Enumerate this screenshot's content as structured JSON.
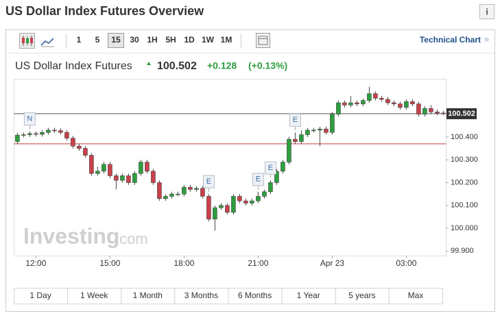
{
  "header": {
    "title": "US Dollar Index Futures Overview"
  },
  "toolbar": {
    "intervals": [
      "1",
      "5",
      "15",
      "30",
      "1H",
      "5H",
      "1D",
      "1W",
      "1M"
    ],
    "selected": "15",
    "link": "Technical Chart"
  },
  "quote": {
    "name": "US Dollar Index Futures",
    "price": "100.502",
    "change": "+0.128",
    "change_percent": "(+0.13%)"
  },
  "watermark": {
    "brand": "Investing",
    "suffix": ".com"
  },
  "chart_data": {
    "type": "candlestick",
    "x": [
      11.25,
      11.5,
      11.75,
      12,
      12.25,
      12.5,
      12.75,
      13,
      13.25,
      13.5,
      13.75,
      14,
      14.25,
      14.5,
      14.75,
      15,
      15.25,
      15.5,
      15.75,
      16,
      16.25,
      16.5,
      16.75,
      17,
      17.25,
      17.5,
      17.75,
      18,
      18.25,
      18.5,
      18.75,
      19,
      19.25,
      19.5,
      19.75,
      20,
      20.25,
      20.5,
      20.75,
      21,
      21.25,
      21.5,
      21.75,
      22,
      22.25,
      22.5,
      22.75,
      23,
      23.25,
      23.5,
      23.75,
      24,
      24.25,
      24.5,
      24.75,
      25,
      25.25,
      25.5,
      25.75,
      26,
      26.25,
      26.5,
      26.75,
      27,
      27.25,
      27.5,
      27.75,
      28,
      28.25,
      28.5
    ],
    "open": [
      100.38,
      100.408,
      100.41,
      100.415,
      100.412,
      100.42,
      100.43,
      100.428,
      100.42,
      100.395,
      100.36,
      100.35,
      100.32,
      100.24,
      100.25,
      100.28,
      100.23,
      100.21,
      100.23,
      100.2,
      100.24,
      100.29,
      100.25,
      100.2,
      100.13,
      100.14,
      100.15,
      100.15,
      100.18,
      100.17,
      100.175,
      100.14,
      100.04,
      100.09,
      100.1,
      100.07,
      100.14,
      100.12,
      100.11,
      100.12,
      100.14,
      100.16,
      100.2,
      100.25,
      100.29,
      100.39,
      100.38,
      100.41,
      100.43,
      100.43,
      100.435,
      100.42,
      100.5,
      100.55,
      100.54,
      100.55,
      100.545,
      100.56,
      100.59,
      100.57,
      100.565,
      100.55,
      100.545,
      100.53,
      100.555,
      100.545,
      100.5,
      100.525,
      100.51,
      100.505
    ],
    "high": [
      100.418,
      100.42,
      100.425,
      100.425,
      100.43,
      100.44,
      100.44,
      100.438,
      100.43,
      100.405,
      100.37,
      100.36,
      100.33,
      100.27,
      100.29,
      100.29,
      100.24,
      100.24,
      100.24,
      100.25,
      100.3,
      100.3,
      100.26,
      100.21,
      100.15,
      100.16,
      100.16,
      100.19,
      100.19,
      100.185,
      100.185,
      100.15,
      100.1,
      100.11,
      100.11,
      100.15,
      100.15,
      100.13,
      100.13,
      100.16,
      100.17,
      100.21,
      100.26,
      100.3,
      100.4,
      100.42,
      100.43,
      100.44,
      100.44,
      100.445,
      100.445,
      100.51,
      100.56,
      100.56,
      100.58,
      100.56,
      100.57,
      100.62,
      100.6,
      100.58,
      100.575,
      100.56,
      100.555,
      100.565,
      100.565,
      100.555,
      100.535,
      100.54,
      100.52,
      100.515
    ],
    "low": [
      100.37,
      100.398,
      100.4,
      100.402,
      100.402,
      100.41,
      100.418,
      100.41,
      100.385,
      100.35,
      100.34,
      100.31,
      100.23,
      100.23,
      100.24,
      100.22,
      100.17,
      100.2,
      100.19,
      100.19,
      100.23,
      100.24,
      100.19,
      100.12,
      100.12,
      100.13,
      100.14,
      100.14,
      100.16,
      100.16,
      100.13,
      100.03,
      99.99,
      100.08,
      100.06,
      100.06,
      100.11,
      100.1,
      100.1,
      100.11,
      100.13,
      100.15,
      100.19,
      100.24,
      100.28,
      100.37,
      100.37,
      100.4,
      100.42,
      100.36,
      100.41,
      100.41,
      100.49,
      100.53,
      100.53,
      100.535,
      100.535,
      100.55,
      100.56,
      100.555,
      100.54,
      100.535,
      100.52,
      100.52,
      100.535,
      100.49,
      100.49,
      100.5,
      100.495,
      100.495
    ],
    "close": [
      100.408,
      100.41,
      100.415,
      100.412,
      100.42,
      100.43,
      100.428,
      100.42,
      100.395,
      100.36,
      100.35,
      100.32,
      100.24,
      100.25,
      100.28,
      100.23,
      100.21,
      100.23,
      100.2,
      100.24,
      100.29,
      100.25,
      100.2,
      100.13,
      100.14,
      100.15,
      100.15,
      100.18,
      100.17,
      100.175,
      100.14,
      100.04,
      100.09,
      100.1,
      100.07,
      100.14,
      100.12,
      100.11,
      100.12,
      100.14,
      100.16,
      100.2,
      100.25,
      100.29,
      100.39,
      100.38,
      100.41,
      100.43,
      100.43,
      100.435,
      100.42,
      100.5,
      100.55,
      100.54,
      100.55,
      100.545,
      100.56,
      100.59,
      100.57,
      100.565,
      100.55,
      100.545,
      100.53,
      100.555,
      100.545,
      100.5,
      100.525,
      100.51,
      100.505,
      100.502
    ],
    "up_color": "#2e9e3e",
    "down_color": "#c9404a",
    "current_price": 100.502,
    "reference_line": 100.37,
    "xlim": [
      11.1,
      28.6
    ],
    "xticks": [
      {
        "value": 12,
        "label": "12:00"
      },
      {
        "value": 15,
        "label": "15:00"
      },
      {
        "value": 18,
        "label": "18:00"
      },
      {
        "value": 21,
        "label": "21:00"
      },
      {
        "value": 24,
        "label": "Apr 23"
      },
      {
        "value": 27,
        "label": "03:00"
      }
    ],
    "ylim": [
      99.88,
      100.655
    ],
    "yticks": [
      {
        "value": 99.9,
        "label": "99.900"
      },
      {
        "value": 100,
        "label": "100.000"
      },
      {
        "value": 100.1,
        "label": "100.100"
      },
      {
        "value": 100.2,
        "label": "100.200"
      },
      {
        "value": 100.3,
        "label": "100.300"
      },
      {
        "value": 100.4,
        "label": "100.400"
      }
    ],
    "events": [
      {
        "label": "N",
        "x": 11.75
      },
      {
        "label": "E",
        "x": 19
      },
      {
        "label": "E",
        "x": 21
      },
      {
        "label": "E",
        "x": 21.5
      },
      {
        "label": "E",
        "x": 22.5
      }
    ]
  },
  "ranges": [
    "1 Day",
    "1 Week",
    "1 Month",
    "3 Months",
    "6 Months",
    "1 Year",
    "5 years",
    "Max"
  ]
}
